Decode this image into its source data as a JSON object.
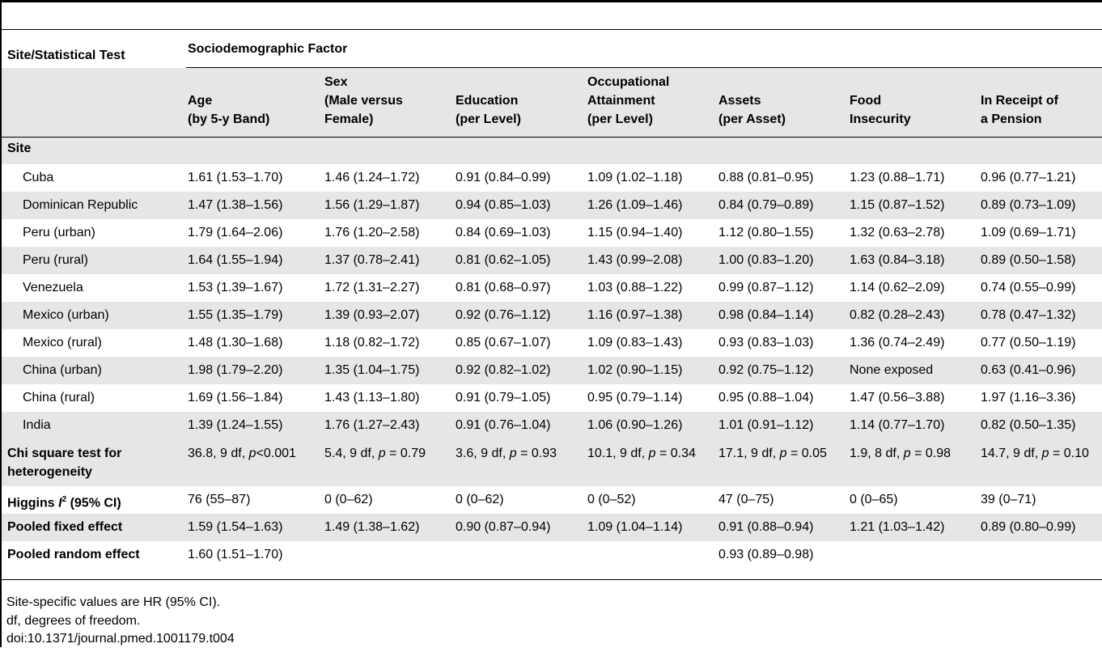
{
  "header": {
    "row_label": "Site/Statistical Test",
    "group_label": "Sociodemographic Factor",
    "columns": [
      {
        "line1": "Age",
        "line2": "(by 5-y Band)"
      },
      {
        "line0": "Sex",
        "line1": "(Male versus",
        "line2": "Female)"
      },
      {
        "line1": "Education",
        "line2": "(per Level)"
      },
      {
        "line0": "Occupational",
        "line1": "Attainment",
        "line2": "(per Level)"
      },
      {
        "line1": "Assets",
        "line2": "(per Asset)"
      },
      {
        "line1": "Food",
        "line2": "Insecurity"
      },
      {
        "line1": "In Receipt of",
        "line2": "a Pension"
      }
    ]
  },
  "site_section_label": "Site",
  "sites": [
    {
      "name": "Cuba",
      "values": [
        "1.61 (1.53–1.70)",
        "1.46 (1.24–1.72)",
        "0.91 (0.84–0.99)",
        "1.09 (1.02–1.18)",
        "0.88 (0.81–0.95)",
        "1.23 (0.88–1.71)",
        "0.96 (0.77–1.21)"
      ]
    },
    {
      "name": "Dominican Republic",
      "values": [
        "1.47 (1.38–1.56)",
        "1.56 (1.29–1.87)",
        "0.94 (0.85–1.03)",
        "1.26 (1.09–1.46)",
        "0.84 (0.79–0.89)",
        "1.15 (0.87–1.52)",
        "0.89 (0.73–1.09)"
      ]
    },
    {
      "name": "Peru (urban)",
      "values": [
        "1.79 (1.64–2.06)",
        "1.76 (1.20–2.58)",
        "0.84 (0.69–1.03)",
        "1.15 (0.94–1.40)",
        "1.12 (0.80–1.55)",
        "1.32 (0.63–2.78)",
        "1.09 (0.69–1.71)"
      ]
    },
    {
      "name": "Peru (rural)",
      "values": [
        "1.64 (1.55–1.94)",
        "1.37 (0.78–2.41)",
        "0.81 (0.62–1.05)",
        "1.43 (0.99–2.08)",
        "1.00 (0.83–1.20)",
        "1.63 (0.84–3.18)",
        "0.89 (0.50–1.58)"
      ]
    },
    {
      "name": "Venezuela",
      "values": [
        "1.53 (1.39–1.67)",
        "1.72 (1.31–2.27)",
        "0.81 (0.68–0.97)",
        "1.03 (0.88–1.22)",
        "0.99 (0.87–1.12)",
        "1.14 (0.62–2.09)",
        "0.74 (0.55–0.99)"
      ]
    },
    {
      "name": "Mexico (urban)",
      "values": [
        "1.55 (1.35–1.79)",
        "1.39 (0.93–2.07)",
        "0.92 (0.76–1.12)",
        "1.16 (0.97–1.38)",
        "0.98 (0.84–1.14)",
        "0.82 (0.28–2.43)",
        "0.78 (0.47–1.32)"
      ]
    },
    {
      "name": "Mexico (rural)",
      "values": [
        "1.48 (1.30–1.68)",
        "1.18 (0.82–1.72)",
        "0.85 (0.67–1.07)",
        "1.09 (0.83–1.43)",
        "0.93 (0.83–1.03)",
        "1.36 (0.74–2.49)",
        "0.77 (0.50–1.19)"
      ]
    },
    {
      "name": "China (urban)",
      "values": [
        "1.98 (1.79–2.20)",
        "1.35 (1.04–1.75)",
        "0.92 (0.82–1.02)",
        "1.02 (0.90–1.15)",
        "0.92 (0.75–1.12)",
        "None exposed",
        "0.63 (0.41–0.96)"
      ]
    },
    {
      "name": "China (rural)",
      "values": [
        "1.69 (1.56–1.84)",
        "1.43 (1.13–1.80)",
        "0.91 (0.79–1.05)",
        "0.95 (0.79–1.14)",
        "0.95 (0.88–1.04)",
        "1.47 (0.56–3.88)",
        "1.97 (1.16–3.36)"
      ]
    },
    {
      "name": "India",
      "values": [
        "1.39 (1.24–1.55)",
        "1.76 (1.27–2.43)",
        "0.91 (0.76–1.04)",
        "1.06 (0.90–1.26)",
        "1.01 (0.91–1.12)",
        "1.14 (0.77–1.70)",
        "0.82 (0.50–1.35)"
      ]
    }
  ],
  "chi_square": {
    "label_line1": "Chi square test for",
    "label_line2": "heterogeneity",
    "values": [
      {
        "pre": "36.8, 9 df, ",
        "p": "p",
        "post": "<0.001"
      },
      {
        "pre": "5.4, 9 df, ",
        "p": "p",
        "post": " = 0.79"
      },
      {
        "pre": "3.6, 9 df, ",
        "p": "p",
        "post": " = 0.93"
      },
      {
        "pre": "10.1, 9 df, ",
        "p": "p",
        "post": " = 0.34"
      },
      {
        "pre": "17.1, 9 df, ",
        "p": "p",
        "post": " = 0.05"
      },
      {
        "pre": "1.9, 8 df, ",
        "p": "p",
        "post": " = 0.98"
      },
      {
        "pre": "14.7, 9 df, ",
        "p": "p",
        "post": " = 0.10"
      }
    ]
  },
  "higgins": {
    "label_pre": "Higgins ",
    "label_i": "I",
    "label_sup": "2",
    "label_post": " (95% CI)",
    "values": [
      "76 (55–87)",
      "0 (0–62)",
      "0 (0–62)",
      "0 (0–52)",
      "47 (0–75)",
      "0 (0–65)",
      "39 (0–71)"
    ]
  },
  "pooled_fixed": {
    "label": "Pooled fixed effect",
    "values": [
      "1.59 (1.54–1.63)",
      "1.49 (1.38–1.62)",
      "0.90 (0.87–0.94)",
      "1.09 (1.04–1.14)",
      "0.91 (0.88–0.94)",
      "1.21 (1.03–1.42)",
      "0.89 (0.80–0.99)"
    ]
  },
  "pooled_random": {
    "label": "Pooled random effect",
    "values": [
      "1.60 (1.51–1.70)",
      "",
      "",
      "",
      "0.93 (0.89–0.98)",
      "",
      ""
    ]
  },
  "footnotes": [
    "Site-specific values are HR (95% CI).",
    "df, degrees of freedom.",
    "doi:10.1371/journal.pmed.1001179.t004"
  ]
}
